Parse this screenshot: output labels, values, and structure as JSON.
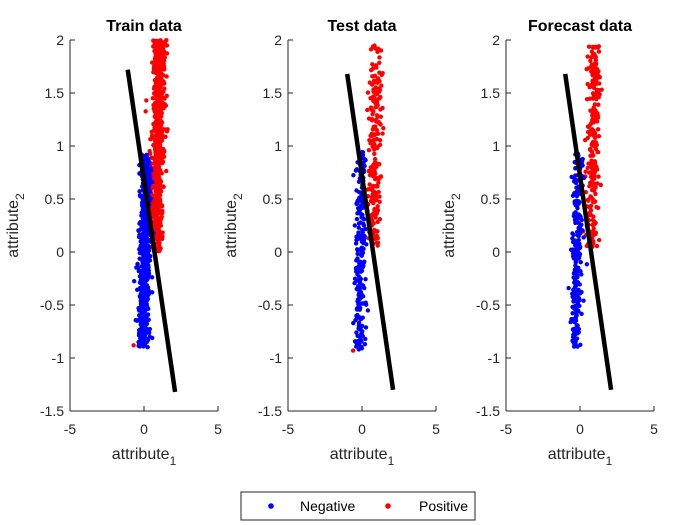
{
  "chart_data": [
    {
      "type": "scatter",
      "title": "Train data",
      "xlabel": "attribute",
      "xlabel_subscript": "1",
      "ylabel": "attribute",
      "ylabel_subscript": "2",
      "xlim": [
        -5,
        5
      ],
      "ylim": [
        -1.5,
        2
      ],
      "xticks": [
        -5,
        0,
        5
      ],
      "yticks": [
        -1.5,
        -1,
        -0.5,
        0,
        0.5,
        1,
        1.5,
        2
      ],
      "series": [
        {
          "name": "Negative",
          "color": "#0000ff",
          "x_mean": 0.05,
          "x_sd": 0.32,
          "y_range": [
            -0.9,
            0.92
          ],
          "count": 700
        },
        {
          "name": "Positive",
          "color": "#ff0000",
          "x_mean": 0.95,
          "x_sd": 0.38,
          "y_range": [
            0.0,
            2.0
          ],
          "count": 700,
          "stray_points": [
            [
              -0.7,
              -0.88
            ],
            [
              0.0,
              -0.75
            ],
            [
              0.2,
              -0.85
            ]
          ]
        }
      ],
      "boundary": {
        "x": [
          -1.1,
          2.1
        ],
        "y": [
          1.72,
          -1.32
        ]
      }
    },
    {
      "type": "scatter",
      "title": "Test data",
      "xlabel": "attribute",
      "xlabel_subscript": "1",
      "ylabel": "attribute",
      "ylabel_subscript": "2",
      "xlim": [
        -5,
        5
      ],
      "ylim": [
        -1.5,
        2
      ],
      "xticks": [
        -5,
        0,
        5
      ],
      "yticks": [
        -1.5,
        -1,
        -0.5,
        0,
        0.5,
        1,
        1.5,
        2
      ],
      "series": [
        {
          "name": "Negative",
          "color": "#0000ff",
          "x_mean": -0.1,
          "x_sd": 0.32,
          "y_range": [
            -0.92,
            0.95
          ],
          "count": 220
        },
        {
          "name": "Positive",
          "color": "#ff0000",
          "x_mean": 0.9,
          "x_sd": 0.38,
          "y_range": [
            0.05,
            1.95
          ],
          "count": 220,
          "stray_points": [
            [
              -0.6,
              -0.93
            ],
            [
              -0.2,
              -0.9
            ]
          ]
        }
      ],
      "boundary": {
        "x": [
          -1.0,
          2.1
        ],
        "y": [
          1.68,
          -1.3
        ]
      }
    },
    {
      "type": "scatter",
      "title": "Forecast data",
      "xlabel": "attribute",
      "xlabel_subscript": "1",
      "ylabel": "attribute",
      "ylabel_subscript": "2",
      "xlim": [
        -5,
        5
      ],
      "ylim": [
        -1.5,
        2
      ],
      "xticks": [
        -5,
        0,
        5
      ],
      "yticks": [
        -1.5,
        -1,
        -0.5,
        0,
        0.5,
        1,
        1.5,
        2
      ],
      "series": [
        {
          "name": "Negative",
          "color": "#0000ff",
          "x_mean": -0.2,
          "x_sd": 0.33,
          "y_range": [
            -0.92,
            0.95
          ],
          "count": 240
        },
        {
          "name": "Positive",
          "color": "#ff0000",
          "x_mean": 0.9,
          "x_sd": 0.38,
          "y_range": [
            0.05,
            1.95
          ],
          "count": 240,
          "stray_points": []
        }
      ],
      "boundary": {
        "x": [
          -1.0,
          2.1
        ],
        "y": [
          1.68,
          -1.3
        ]
      }
    }
  ],
  "legend": {
    "placement": "bottom-center",
    "entries": [
      {
        "label": "Negative",
        "color": "#0000ff"
      },
      {
        "label": "Positive",
        "color": "#ff0000"
      }
    ]
  }
}
